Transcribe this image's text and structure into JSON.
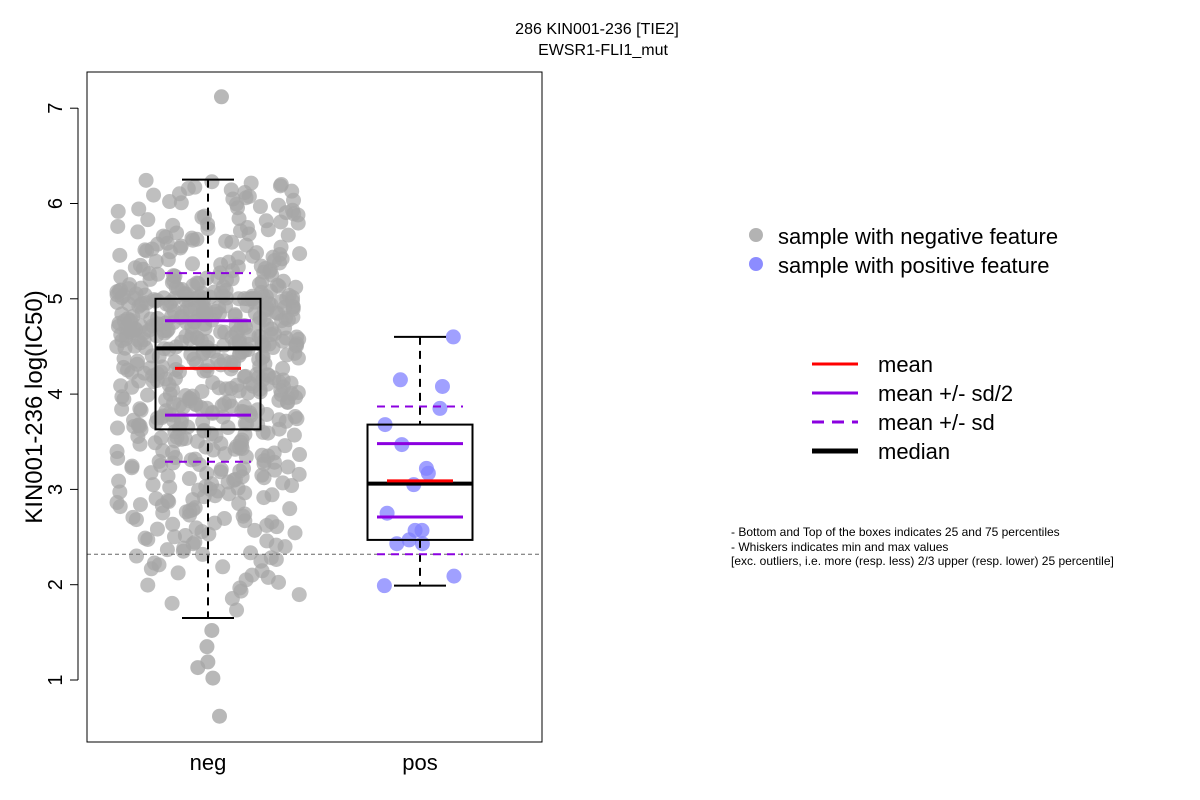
{
  "chart_data": {
    "type": "boxplot",
    "title": "286 KIN001-236 [TIE2]",
    "subtitle": "EWSR1-FLI1_mut",
    "ylabel": "KIN001-236 log(IC50)",
    "xlabel": "",
    "categories": [
      "neg",
      "pos"
    ],
    "ylim": [
      0.35,
      7.4
    ],
    "yticks": [
      1,
      2,
      3,
      4,
      5,
      6,
      7
    ],
    "grid": false,
    "threshold_line": 2.32,
    "groups": [
      {
        "name": "neg",
        "color": "#a6a6a6",
        "n_points": 620,
        "q1": 3.63,
        "median": 4.48,
        "q3": 5.0,
        "whisker_low": 1.65,
        "whisker_high": 6.25,
        "mean": 4.27,
        "mean_minus_half_sd": 3.78,
        "mean_plus_half_sd": 4.77,
        "mean_minus_sd": 3.29,
        "mean_plus_sd": 5.27,
        "outliers": [
          7.12,
          1.52,
          1.35,
          1.19,
          1.13,
          1.02,
          0.62
        ]
      },
      {
        "name": "pos",
        "color": "#8080ff",
        "points": [
          4.6,
          4.15,
          4.08,
          3.85,
          3.68,
          3.47,
          3.22,
          3.17,
          3.05,
          2.75,
          2.57,
          2.57,
          2.47,
          2.43,
          2.43,
          2.09,
          1.99
        ],
        "q1": 2.47,
        "median": 3.06,
        "q3": 3.68,
        "whisker_low": 1.99,
        "whisker_high": 4.6,
        "mean": 3.09,
        "mean_minus_half_sd": 2.71,
        "mean_plus_half_sd": 3.48,
        "mean_minus_sd": 2.32,
        "mean_plus_sd": 3.87,
        "outliers": []
      }
    ],
    "legend_points": [
      {
        "label": "sample with negative feature",
        "color": "#b3b3b3"
      },
      {
        "label": "sample with positive feature",
        "color": "#8c8cff"
      }
    ],
    "legend_lines": [
      {
        "label": "mean",
        "color": "#ff0000",
        "style": "solid"
      },
      {
        "label": "mean +/- sd/2",
        "color": "#8b00e0",
        "style": "solid"
      },
      {
        "label": "mean +/- sd",
        "color": "#8b00e0",
        "style": "dashed"
      },
      {
        "label": "median",
        "color": "#000000",
        "style": "thick"
      }
    ],
    "notes": [
      "- Bottom and Top of the boxes indicates 25 and 75 percentiles",
      "- Whiskers indicates min and max values",
      "[exc. outliers, i.e. more (resp. less) 2/3 upper (resp. lower) 25 percentile]"
    ]
  }
}
